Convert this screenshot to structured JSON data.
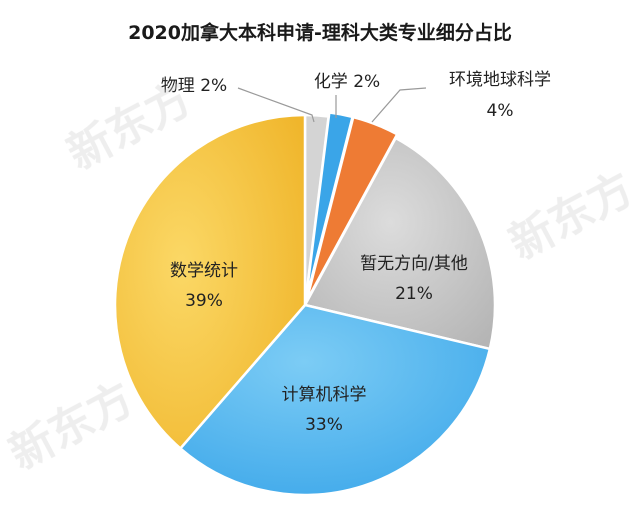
{
  "chart_data": {
    "type": "pie",
    "title": "2020加拿大本科申请-理科大类专业细分占比",
    "start_angle_deg": 0,
    "direction": "clockwise",
    "series": [
      {
        "name": "物理",
        "value": 2,
        "value_label": "2%",
        "color": "#d4d4d4"
      },
      {
        "name": "化学",
        "value": 2,
        "value_label": "2%",
        "color": "#3aa5e8"
      },
      {
        "name": "环境地球科学",
        "value": 4,
        "value_label": "4%",
        "color": "#ee7b34"
      },
      {
        "name": "暂无方向/其他",
        "value": 21,
        "value_label": "21%",
        "color": "#c7c7c7"
      },
      {
        "name": "计算机科学",
        "value": 33,
        "value_label": "33%",
        "color": "#52b6ee"
      },
      {
        "name": "数学统计",
        "value": 39,
        "value_label": "39%",
        "color": "#f6c23b"
      }
    ]
  },
  "labels": {
    "physics": "物理  2%",
    "chemistry": "化学  2%",
    "env_name": "环境地球科学",
    "env_pct": "4%",
    "other_name": "暂无方向/其他",
    "other_pct": "21%",
    "cs_name": "计算机科学",
    "cs_pct": "33%",
    "math_name": "数学统计",
    "math_pct": "39%"
  },
  "watermark": "新东方"
}
